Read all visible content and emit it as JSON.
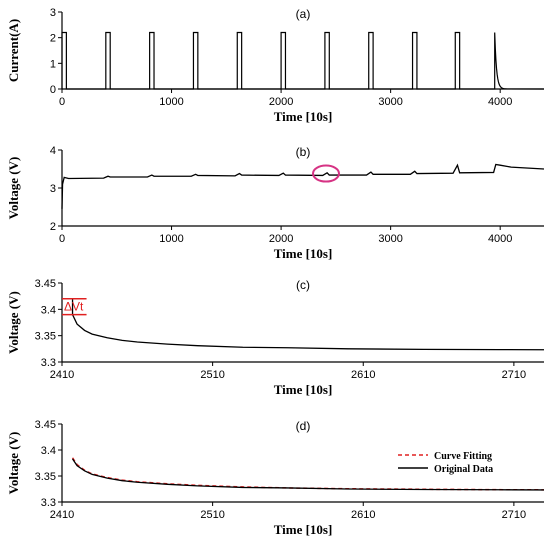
{
  "chart_data": [
    {
      "type": "line",
      "title": "(a)",
      "xlabel": "Time [10s]",
      "ylabel": "Current(A)",
      "xlim": [
        0,
        4400
      ],
      "ylim": [
        0,
        3
      ],
      "xticks": [
        "0",
        "1000",
        "2000",
        "3000",
        "4000"
      ],
      "xtick_values": [
        0,
        1000,
        2000,
        3000,
        4000
      ],
      "yticks": [
        "0",
        "1",
        "2",
        "3"
      ],
      "ytick_values": [
        0,
        1,
        2,
        3
      ],
      "grid": false,
      "series_color": "#000000",
      "pulse_amplitude": 2.2,
      "pulses": [
        [
          0,
          40
        ],
        [
          400,
          440
        ],
        [
          800,
          840
        ],
        [
          1200,
          1240
        ],
        [
          1600,
          1640
        ],
        [
          2000,
          2040
        ],
        [
          2400,
          2440
        ],
        [
          2800,
          2840
        ],
        [
          3200,
          3240
        ],
        [
          3590,
          3630
        ]
      ],
      "final_decay": {
        "start": 3950,
        "peak": 2.2,
        "end": 4060
      }
    },
    {
      "type": "line",
      "title": "(b)",
      "xlabel": "Time [10s]",
      "ylabel": "Voltage (V)",
      "xlim": [
        0,
        4400
      ],
      "ylim": [
        2,
        4
      ],
      "xticks": [
        "0",
        "1000",
        "2000",
        "3000",
        "4000"
      ],
      "xtick_values": [
        0,
        1000,
        2000,
        3000,
        4000
      ],
      "yticks": [
        "2",
        "3",
        "4"
      ],
      "ytick_values": [
        2,
        3,
        4
      ],
      "grid": false,
      "series_color": "#000000",
      "x": [
        0,
        5,
        20,
        60,
        380,
        420,
        440,
        780,
        820,
        840,
        1180,
        1220,
        1240,
        1580,
        1620,
        1640,
        1980,
        2020,
        2040,
        2380,
        2420,
        2440,
        2780,
        2820,
        2840,
        3180,
        3220,
        3240,
        3570,
        3610,
        3630,
        3940,
        3960,
        4000,
        4100,
        4400
      ],
      "y": [
        2.45,
        3.1,
        3.28,
        3.25,
        3.26,
        3.31,
        3.29,
        3.29,
        3.34,
        3.31,
        3.31,
        3.36,
        3.33,
        3.32,
        3.38,
        3.34,
        3.33,
        3.39,
        3.34,
        3.33,
        3.4,
        3.34,
        3.34,
        3.42,
        3.36,
        3.36,
        3.44,
        3.38,
        3.39,
        3.6,
        3.4,
        3.41,
        3.62,
        3.6,
        3.55,
        3.5
      ],
      "highlight": {
        "x": 2410,
        "y": 3.38,
        "color": "#d63384"
      }
    },
    {
      "type": "line",
      "title": "(c)",
      "xlabel": "Time [10s]",
      "ylabel": "Voltage (V)",
      "xlim": [
        2410,
        2730
      ],
      "ylim": [
        3.3,
        3.45
      ],
      "xticks": [
        "2410",
        "2510",
        "2610",
        "2710"
      ],
      "xtick_values": [
        2410,
        2510,
        2610,
        2710
      ],
      "yticks": [
        "3.3",
        "3.35",
        "3.4",
        "3.45"
      ],
      "ytick_values": [
        3.3,
        3.35,
        3.4,
        3.45
      ],
      "grid": false,
      "series_color": "#000000",
      "x": [
        2410,
        2417,
        2417,
        2420,
        2425,
        2430,
        2440,
        2450,
        2460,
        2480,
        2500,
        2530,
        2560,
        2600,
        2650,
        2700,
        2730
      ],
      "y": [
        3.42,
        3.42,
        3.39,
        3.372,
        3.36,
        3.353,
        3.346,
        3.341,
        3.338,
        3.334,
        3.331,
        3.328,
        3.327,
        3.325,
        3.324,
        3.3235,
        3.3232
      ],
      "annotation": {
        "text": "ΔVt",
        "x_start": 2410,
        "x_end": 2417,
        "y_top": 3.42,
        "y_bottom": 3.39,
        "color": "#e02020"
      }
    },
    {
      "type": "line",
      "title": "(d)",
      "xlabel": "Time [10s]",
      "ylabel": "Voltage (V)",
      "xlim": [
        2410,
        2730
      ],
      "ylim": [
        3.3,
        3.45
      ],
      "xticks": [
        "2410",
        "2510",
        "2610",
        "2710"
      ],
      "xtick_values": [
        2410,
        2510,
        2610,
        2710
      ],
      "yticks": [
        "3.3",
        "3.35",
        "3.4",
        "3.45"
      ],
      "ytick_values": [
        3.3,
        3.35,
        3.4,
        3.45
      ],
      "grid": false,
      "legend_placement": "right",
      "series": [
        {
          "name": "Curve Fitting",
          "color": "#e02020",
          "dash": true,
          "x": [
            2417,
            2420,
            2425,
            2430,
            2440,
            2450,
            2460,
            2480,
            2500,
            2530,
            2560,
            2600,
            2650,
            2700,
            2730
          ],
          "y": [
            3.385,
            3.372,
            3.361,
            3.354,
            3.347,
            3.342,
            3.339,
            3.335,
            3.332,
            3.329,
            3.327,
            3.3255,
            3.3245,
            3.3237,
            3.3234
          ]
        },
        {
          "name": "Original Data",
          "color": "#000000",
          "dash": false,
          "x": [
            2417,
            2420,
            2425,
            2430,
            2440,
            2450,
            2460,
            2480,
            2500,
            2530,
            2560,
            2600,
            2650,
            2700,
            2730
          ],
          "y": [
            3.383,
            3.37,
            3.36,
            3.353,
            3.346,
            3.341,
            3.338,
            3.334,
            3.331,
            3.328,
            3.327,
            3.325,
            3.324,
            3.3235,
            3.3232
          ]
        }
      ]
    }
  ]
}
